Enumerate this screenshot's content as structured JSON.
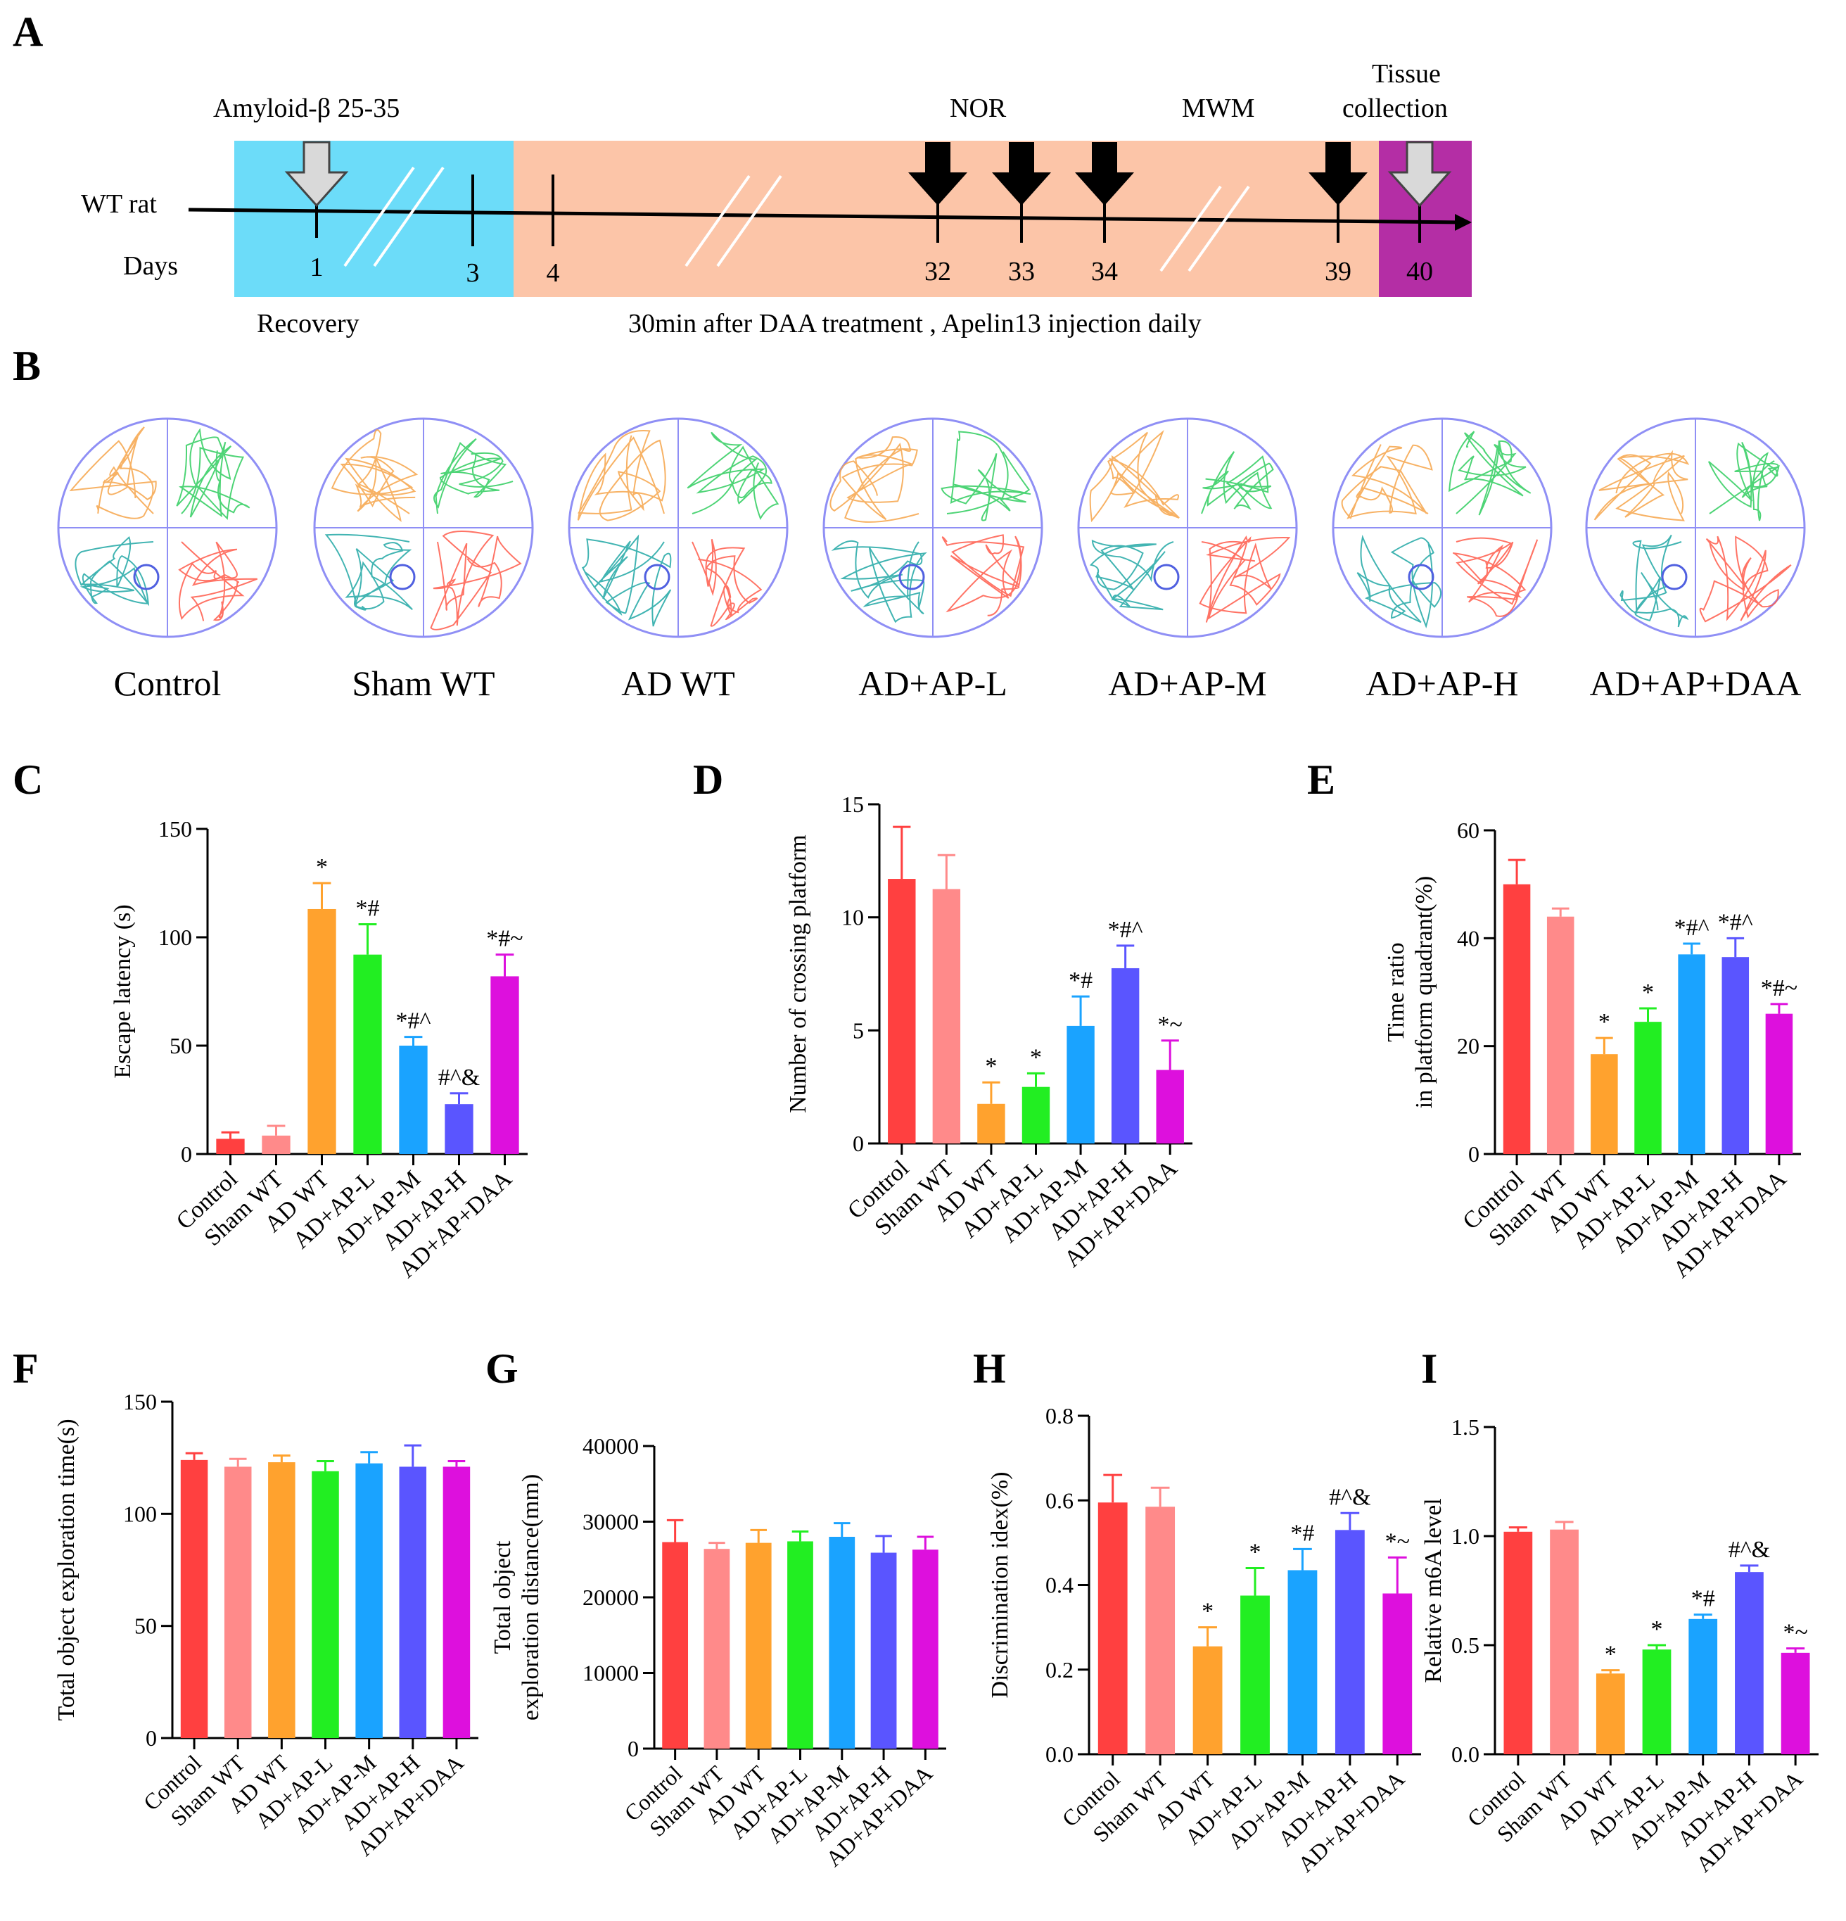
{
  "figure": {
    "panel_letters": [
      "A",
      "B",
      "C",
      "D",
      "E",
      "F",
      "G",
      "H",
      "I"
    ],
    "colors": [
      "#ff4040",
      "#ff8a8a",
      "#ffa22e",
      "#22ee22",
      "#1aa3ff",
      "#5a55ff",
      "#dd10dd"
    ]
  },
  "timeline": {
    "top_labels": {
      "amyloid": "Amyloid-β 25-35",
      "nor": "NOR",
      "mwm": "MWM",
      "tissue_line1": "Tissue",
      "tissue_line2": "collection"
    },
    "row_label": "WT rat",
    "days_label": "Days",
    "days": [
      "1",
      "3",
      "4",
      "32",
      "33",
      "34",
      "39",
      "40"
    ],
    "recovery_label": "Recovery",
    "treatment_label": "30min after DAA treatment , Apelin13  injection daily",
    "colors": {
      "recovery": "#6cdcf9",
      "treatment": "#fcc5a8",
      "tissue": "#b42ea5"
    }
  },
  "maze": {
    "groups": [
      "Control",
      "Sham WT",
      "AD WT",
      "AD+AP-L",
      "AD+AP-M",
      "AD+AP-H",
      "AD+AP+DAA"
    ],
    "path_colors": [
      "#f6a54a",
      "#2fcc5e",
      "#ff5a4a",
      "#20a7a5"
    ]
  },
  "chart_data": [
    {
      "panel": "C",
      "type": "bar",
      "categories": [
        "Control",
        "Sham WT",
        "AD WT",
        "AD+AP-L",
        "AD+AP-M",
        "AD+AP-H",
        "AD+AP+DAA"
      ],
      "values": [
        7,
        8.5,
        113,
        92,
        50,
        23,
        82
      ],
      "errors": [
        3,
        4.5,
        12,
        14,
        4,
        5,
        10
      ],
      "annotations": [
        "",
        "",
        "*",
        "*#",
        "*#^",
        "#^&",
        "*#~"
      ],
      "ylabel": "Escape latency (s)",
      "ylim": [
        0,
        150
      ],
      "yticks": [
        "0",
        "50",
        "100",
        "150"
      ]
    },
    {
      "panel": "D",
      "type": "bar",
      "categories": [
        "Control",
        "Sham WT",
        "AD WT",
        "AD+AP-L",
        "AD+AP-M",
        "AD+AP-H",
        "AD+AP+DAA"
      ],
      "values": [
        11.7,
        11.25,
        1.75,
        2.5,
        5.2,
        7.75,
        3.25
      ],
      "errors": [
        2.3,
        1.5,
        0.95,
        0.6,
        1.3,
        1.0,
        1.3
      ],
      "annotations": [
        "",
        "",
        "*",
        "*",
        "*#",
        "*#^",
        "*~"
      ],
      "ylabel": "Number of crossing platform",
      "ylim": [
        0,
        15
      ],
      "yticks": [
        "0",
        "5",
        "10",
        "15"
      ]
    },
    {
      "panel": "E",
      "type": "bar",
      "categories": [
        "Control",
        "Sham WT",
        "AD WT",
        "AD+AP-L",
        "AD+AP-M",
        "AD+AP-H",
        "AD+AP+DAA"
      ],
      "values": [
        50,
        44,
        18.5,
        24.5,
        37,
        36.5,
        26
      ],
      "errors": [
        4.5,
        1.5,
        3,
        2.5,
        2,
        3.5,
        1.8
      ],
      "annotations": [
        "",
        "",
        "*",
        "*",
        "*#^",
        "*#^",
        "*#~"
      ],
      "ylabel_line1": "Time ratio",
      "ylabel_line2": "in platform quadrant(%)",
      "ylim": [
        0,
        60
      ],
      "yticks": [
        "0",
        "20",
        "40",
        "60"
      ]
    },
    {
      "panel": "F",
      "type": "bar",
      "categories": [
        "Control",
        "Sham WT",
        "AD WT",
        "AD+AP-L",
        "AD+AP-M",
        "AD+AP-H",
        "AD+AP+DAA"
      ],
      "values": [
        124,
        121,
        123,
        119,
        122.5,
        121,
        121
      ],
      "errors": [
        3,
        3.5,
        3,
        4.5,
        5,
        9.5,
        2.5
      ],
      "annotations": [
        "",
        "",
        "",
        "",
        "",
        "",
        ""
      ],
      "ylabel": "Total object exploration time(s)",
      "ylim": [
        0,
        150
      ],
      "yticks": [
        "0",
        "50",
        "100",
        "150"
      ]
    },
    {
      "panel": "G",
      "type": "bar",
      "categories": [
        "Control",
        "Sham WT",
        "AD WT",
        "AD+AP-L",
        "AD+AP-M",
        "AD+AP-H",
        "AD+AP+DAA"
      ],
      "values": [
        27300,
        26400,
        27200,
        27400,
        28000,
        25900,
        26300
      ],
      "errors": [
        2900,
        800,
        1700,
        1300,
        1800,
        2200,
        1700
      ],
      "annotations": [
        "",
        "",
        "",
        "",
        "",
        "",
        ""
      ],
      "ylabel_line1": "Total object",
      "ylabel_line2": "exploration distance(mm)",
      "ylim": [
        0,
        40000
      ],
      "yticks": [
        "0",
        "10000",
        "20000",
        "30000",
        "40000"
      ]
    },
    {
      "panel": "H",
      "type": "bar",
      "categories": [
        "Control",
        "Sham WT",
        "AD WT",
        "AD+AP-L",
        "AD+AP-M",
        "AD+AP-H",
        "AD+AP+DAA"
      ],
      "values": [
        0.595,
        0.585,
        0.255,
        0.375,
        0.435,
        0.53,
        0.38
      ],
      "errors": [
        0.065,
        0.045,
        0.045,
        0.065,
        0.05,
        0.04,
        0.085
      ],
      "annotations": [
        "",
        "",
        "*",
        "*",
        "*#",
        "#^&",
        "*~"
      ],
      "ylabel": "Discrimination idex(%)",
      "ylim": [
        0,
        0.8
      ],
      "yticks": [
        "0.0",
        "0.2",
        "0.4",
        "0.6",
        "0.8"
      ]
    },
    {
      "panel": "I",
      "type": "bar",
      "categories": [
        "Control",
        "Sham WT",
        "AD WT",
        "AD+AP-L",
        "AD+AP-M",
        "AD+AP-H",
        "AD+AP+DAA"
      ],
      "values": [
        1.02,
        1.03,
        0.37,
        0.48,
        0.62,
        0.835,
        0.465
      ],
      "errors": [
        0.02,
        0.035,
        0.015,
        0.02,
        0.02,
        0.03,
        0.02
      ],
      "annotations": [
        "",
        "",
        "*",
        "*",
        "*#",
        "#^&",
        "*~"
      ],
      "ylabel": "Relative m6A level",
      "ylim": [
        0,
        1.5
      ],
      "yticks": [
        "0.0",
        "0.5",
        "1.0",
        "1.5"
      ]
    }
  ]
}
